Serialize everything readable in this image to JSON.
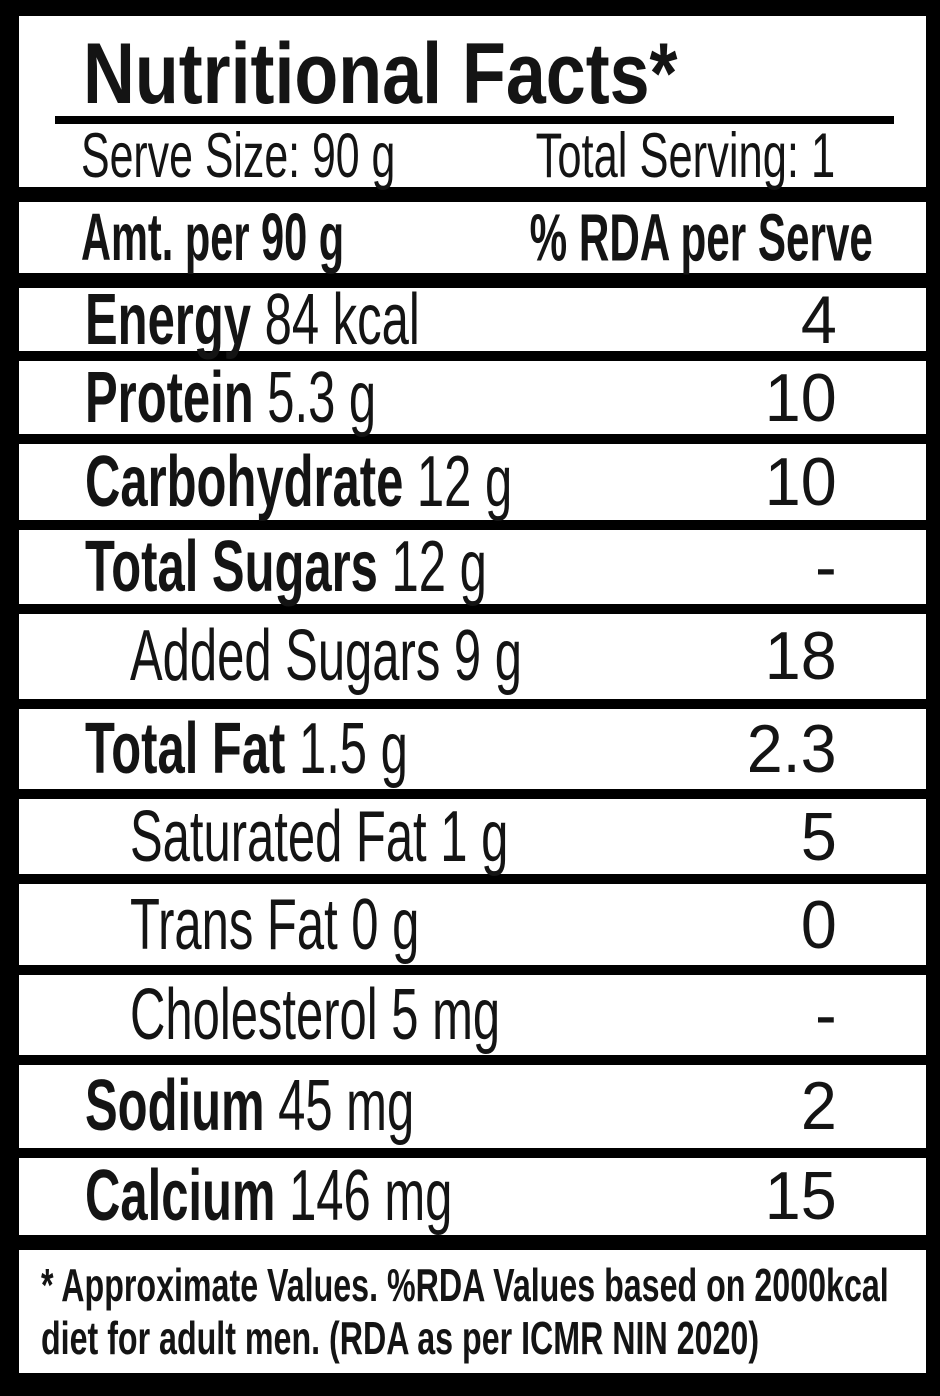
{
  "label": {
    "title": "Nutritional Facts*",
    "serving": {
      "serve_size": "Serve Size: 90 g",
      "total_serving": "Total Serving: 1"
    },
    "columns": {
      "amount": "Amt. per 90 g",
      "rda": "% RDA per Serve"
    },
    "rows": [
      {
        "name": "Energy",
        "value": "84 kcal",
        "rda": "4",
        "sub": false
      },
      {
        "name": "Protein",
        "value": "5.3 g",
        "rda": "10",
        "sub": false
      },
      {
        "name": "Carbohydrate",
        "value": "12 g",
        "rda": "10",
        "sub": false
      },
      {
        "name": "Total Sugars",
        "value": "12 g",
        "rda": "-",
        "sub": false
      },
      {
        "name": "Added Sugars",
        "value": "9 g",
        "rda": "18",
        "sub": true
      },
      {
        "name": "Total Fat",
        "value": "1.5 g",
        "rda": "2.3",
        "sub": false
      },
      {
        "name": "Saturated Fat",
        "value": "1 g",
        "rda": "5",
        "sub": true
      },
      {
        "name": "Trans Fat",
        "value": "0 g",
        "rda": "0",
        "sub": true
      },
      {
        "name": "Cholesterol",
        "value": "5 mg",
        "rda": "-",
        "sub": true
      },
      {
        "name": "Sodium",
        "value": "45 mg",
        "rda": "2",
        "sub": false
      },
      {
        "name": "Calcium",
        "value": "146 mg",
        "rda": "15",
        "sub": false
      }
    ],
    "footnote_lines": [
      "* Approximate Values. %RDA Values based on 2000kcal",
      "diet for adult men. (RDA as per ICMR NIN 2020)"
    ],
    "colors": {
      "background": "#000000",
      "panel": "#ffffff",
      "text": "#141414"
    }
  }
}
